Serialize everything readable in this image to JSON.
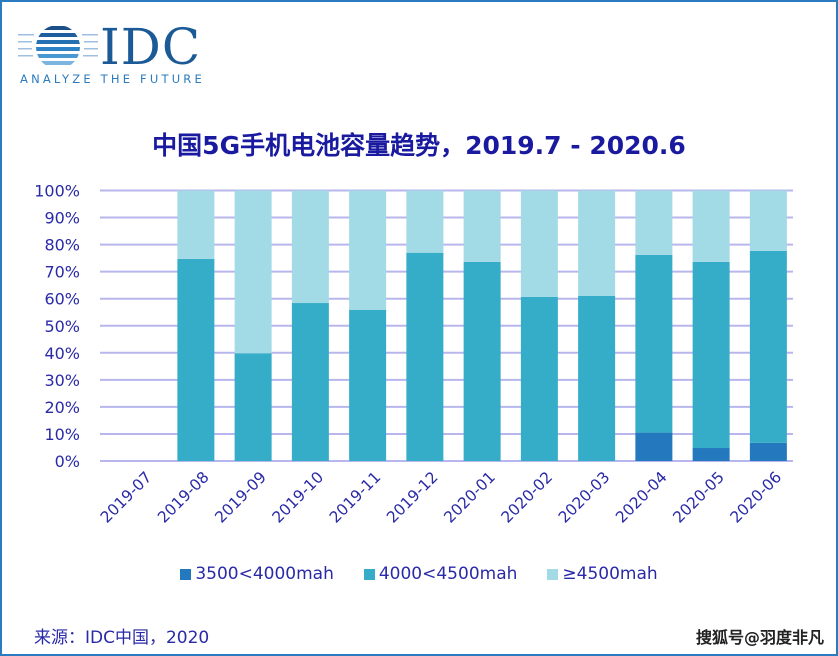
{
  "logo": {
    "brand": "IDC",
    "tagline": "ANALYZE THE FUTURE"
  },
  "chart_data": {
    "type": "bar",
    "stacked": true,
    "title": "中国5G手机电池容量趋势，2019.7 - 2020.6",
    "xlabel": "",
    "ylabel": "",
    "ylim": [
      0,
      100
    ],
    "y_ticks": [
      "0%",
      "10%",
      "20%",
      "30%",
      "40%",
      "50%",
      "60%",
      "70%",
      "80%",
      "90%",
      "100%"
    ],
    "grid": true,
    "legend_position": "bottom",
    "categories": [
      "2019-07",
      "2019-08",
      "2019-09",
      "2019-10",
      "2019-11",
      "2019-12",
      "2020-01",
      "2020-02",
      "2020-03",
      "2020-04",
      "2020-05",
      "2020-06"
    ],
    "series": [
      {
        "name": "3500<4000mah",
        "color": "#2478bd",
        "values": [
          0,
          0,
          0,
          0,
          0,
          0,
          0,
          0,
          0,
          10.5,
          4.8,
          6.7
        ]
      },
      {
        "name": "4000<4500mah",
        "color": "#36adc8",
        "values": [
          0,
          74.7,
          39.8,
          58.4,
          55.9,
          77.0,
          73.6,
          60.7,
          61.0,
          65.7,
          68.8,
          71.0
        ]
      },
      {
        "name": "≥4500mah",
        "color": "#a2dae5",
        "values": [
          0,
          25.3,
          60.2,
          41.6,
          44.1,
          23.0,
          26.4,
          39.3,
          39.0,
          23.8,
          26.4,
          22.3
        ]
      }
    ]
  },
  "footer": {
    "source": "来源：IDC中国，2020",
    "watermark": "搜狐号@羽度非凡"
  }
}
